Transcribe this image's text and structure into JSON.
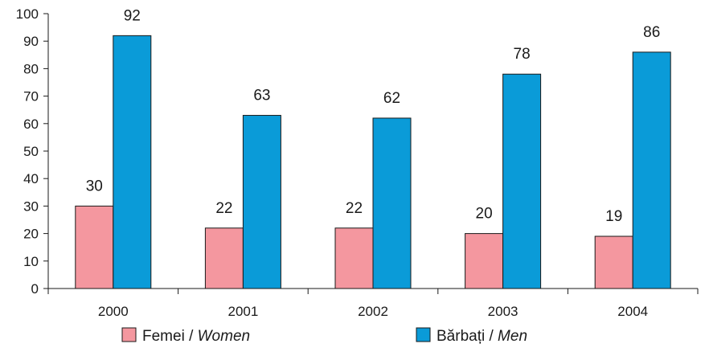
{
  "chart_data": {
    "type": "bar",
    "title": "",
    "xlabel": "",
    "ylabel": "",
    "categories": [
      "2000",
      "2001",
      "2002",
      "2003",
      "2004"
    ],
    "series": [
      {
        "name": "Femei / Women",
        "name_plain": "Femei / ",
        "name_italic": "Women",
        "color": "#f4979f",
        "values": [
          30,
          22,
          22,
          20,
          19
        ]
      },
      {
        "name": "Bărbați / Men",
        "name_plain": "Bărbați / ",
        "name_italic": "Men",
        "color": "#0a9bd8",
        "values": [
          92,
          63,
          62,
          78,
          86
        ]
      }
    ],
    "data_labels": [
      [
        "30",
        "22",
        "22",
        "20",
        "19"
      ],
      [
        "92",
        "63",
        "62",
        "78",
        "86"
      ]
    ],
    "ylim": [
      0,
      100
    ],
    "yticks": [
      0,
      10,
      20,
      30,
      40,
      50,
      60,
      70,
      80,
      90,
      100
    ],
    "grid": false,
    "legend_position": "bottom"
  }
}
